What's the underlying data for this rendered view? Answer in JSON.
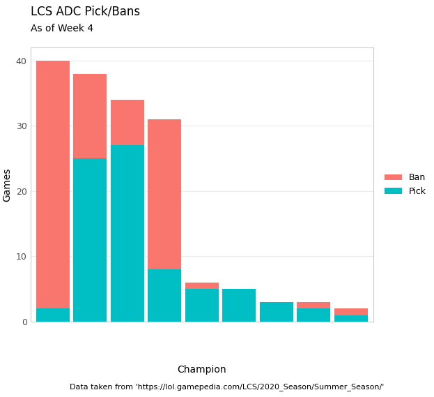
{
  "chart_data": {
    "type": "bar",
    "title": "LCS ADC Pick/Bans",
    "subtitle": "As of Week 4",
    "caption": "Data taken from 'https://lol.gamepedia.com/LCS/2020_Season/Summer_Season/'",
    "x_label": "Champion",
    "y_label": "Games",
    "categories": [
      null,
      null,
      null,
      null,
      null,
      null,
      null,
      null,
      null
    ],
    "stacked": true,
    "series": [
      {
        "name": "Pick",
        "color": "#00BFC4",
        "values": [
          2,
          25,
          27,
          8,
          5,
          5,
          3,
          2,
          1
        ]
      },
      {
        "name": "Ban",
        "color": "#F8766D",
        "values": [
          38,
          13,
          7,
          23,
          1,
          0,
          0,
          1,
          1
        ]
      }
    ],
    "legend_order": [
      "Ban",
      "Pick"
    ],
    "ylim": [
      0,
      42
    ],
    "yticks": [
      0,
      10,
      20,
      30,
      40
    ],
    "grid": true,
    "legend": "right",
    "tick_labels": "y"
  }
}
